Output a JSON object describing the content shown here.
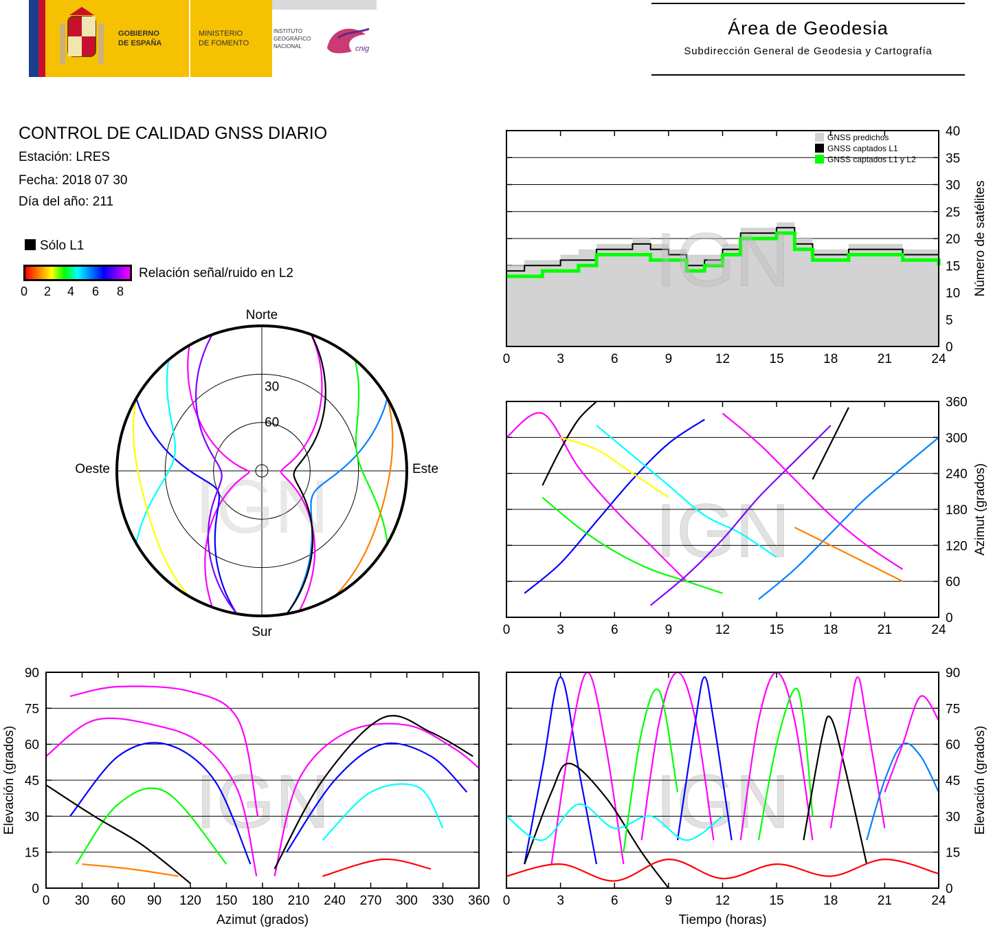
{
  "header": {
    "logo_lines": [
      "GOBIERNO",
      "DE ESPAÑA",
      "MINISTERIO",
      "DE FOMENTO",
      "INSTITUTO",
      "GEOGRÁFICO",
      "NACIONAL",
      "cnig"
    ],
    "area_title": "Área de Geodesia",
    "area_subtitle": "Subdirección General de Geodesia y Cartografía"
  },
  "report": {
    "title": "CONTROL DE CALIDAD GNSS DIARIO",
    "station": "Estación: LRES",
    "date": "Fecha: 2018 07 30",
    "doy": "Día del año: 211",
    "legend_l1": "Sólo L1",
    "snr_label": "Relación señal/ruido en L2",
    "snr_ticks": [
      "0",
      "2",
      "4",
      "6",
      "8"
    ],
    "snr_colors": [
      "#ff0000",
      "#ff7f00",
      "#ffff00",
      "#00ff00",
      "#00ffff",
      "#0080ff",
      "#0000ff",
      "#8000ff",
      "#ff00ff"
    ]
  },
  "watermark": "IGN",
  "chart_data": [
    {
      "type": "area",
      "id": "sat_count",
      "title": "",
      "xlabel": "",
      "ylabel": "Número de satélites",
      "xlim": [
        0,
        24
      ],
      "ylim": [
        0,
        40
      ],
      "xticks": [
        "0",
        "3",
        "6",
        "9",
        "12",
        "15",
        "18",
        "21",
        "24"
      ],
      "yticks": [
        "0",
        "5",
        "10",
        "15",
        "20",
        "25",
        "30",
        "35",
        "40"
      ],
      "legend_position": "top-right",
      "series": [
        {
          "name": "GNSS predichos",
          "color": "#d3d3d3",
          "x": [
            0,
            1,
            2,
            3,
            4,
            5,
            6,
            7,
            8,
            9,
            10,
            11,
            12,
            13,
            14,
            15,
            16,
            17,
            18,
            19,
            20,
            21,
            22,
            23,
            24
          ],
          "values": [
            15,
            16,
            16,
            17,
            18,
            19,
            19,
            20,
            19,
            18,
            17,
            17,
            19,
            22,
            22,
            23,
            20,
            18,
            18,
            19,
            19,
            19,
            18,
            18,
            17
          ]
        },
        {
          "name": "GNSS captados L1",
          "color": "#000000",
          "x": [
            0,
            1,
            2,
            3,
            4,
            5,
            6,
            7,
            8,
            9,
            10,
            11,
            12,
            13,
            14,
            15,
            16,
            17,
            18,
            19,
            20,
            21,
            22,
            23,
            24
          ],
          "values": [
            14,
            15,
            15,
            16,
            16,
            18,
            18,
            19,
            18,
            17,
            15,
            16,
            18,
            21,
            21,
            22,
            19,
            17,
            17,
            18,
            18,
            18,
            17,
            17,
            16
          ]
        },
        {
          "name": "GNSS captados L1 y L2",
          "color": "#00ff00",
          "x": [
            0,
            1,
            2,
            3,
            4,
            5,
            6,
            7,
            8,
            9,
            10,
            11,
            12,
            13,
            14,
            15,
            16,
            17,
            18,
            19,
            20,
            21,
            22,
            23,
            24
          ],
          "values": [
            13,
            13,
            14,
            14,
            15,
            17,
            17,
            17,
            16,
            16,
            14,
            15,
            17,
            20,
            20,
            21,
            18,
            16,
            16,
            17,
            17,
            17,
            16,
            16,
            15
          ]
        }
      ]
    },
    {
      "type": "scatter",
      "id": "skyplot",
      "title": "",
      "labels": {
        "north": "Norte",
        "south": "Sur",
        "east": "Este",
        "west": "Oeste"
      },
      "ring_labels": [
        "30",
        "60"
      ],
      "rings_elevation": [
        0,
        30,
        60
      ],
      "series": [
        {
          "name": "",
          "color": "#ff00ff",
          "az_from": 330,
          "az_to": 200,
          "max_el": 82
        },
        {
          "name": "",
          "color": "#ff00ff",
          "az_from": 20,
          "az_to": 165,
          "max_el": 78
        },
        {
          "name": "",
          "color": "#0000ff",
          "az_from": 300,
          "az_to": 190,
          "max_el": 60
        },
        {
          "name": "",
          "color": "#0080ff",
          "az_from": 60,
          "az_to": 170,
          "max_el": 55
        },
        {
          "name": "",
          "color": "#00ffff",
          "az_from": 320,
          "az_to": 240,
          "max_el": 35
        },
        {
          "name": "",
          "color": "#00ff00",
          "az_from": 40,
          "az_to": 120,
          "max_el": 30
        },
        {
          "name": "",
          "color": "#ffff00",
          "az_from": 300,
          "az_to": 210,
          "max_el": 15
        },
        {
          "name": "",
          "color": "#ff7f00",
          "az_from": 60,
          "az_to": 150,
          "max_el": 12
        },
        {
          "name": "",
          "color": "#000000",
          "az_from": 20,
          "az_to": 170,
          "max_el": 70
        },
        {
          "name": "",
          "color": "#8000ff",
          "az_from": 340,
          "az_to": 190,
          "max_el": 65
        }
      ]
    },
    {
      "type": "line",
      "id": "azimuth_time",
      "title": "",
      "xlabel": "",
      "ylabel": "Azimut (grados)",
      "xlim": [
        0,
        24
      ],
      "ylim": [
        0,
        360
      ],
      "xticks": [
        "0",
        "3",
        "6",
        "9",
        "12",
        "15",
        "18",
        "21",
        "24"
      ],
      "yticks": [
        "0",
        "60",
        "120",
        "180",
        "240",
        "300",
        "360"
      ],
      "series": [
        {
          "name": "",
          "color": "#ff00ff",
          "x": [
            0,
            2,
            4,
            6,
            8,
            10
          ],
          "values": [
            300,
            340,
            250,
            180,
            120,
            60
          ]
        },
        {
          "name": "",
          "color": "#0000ff",
          "x": [
            1,
            3,
            5,
            7,
            9,
            11
          ],
          "values": [
            40,
            90,
            160,
            230,
            290,
            330
          ]
        },
        {
          "name": "",
          "color": "#00ff00",
          "x": [
            2,
            4,
            6,
            8,
            10,
            12
          ],
          "values": [
            200,
            150,
            110,
            80,
            60,
            40
          ]
        },
        {
          "name": "",
          "color": "#00ffff",
          "x": [
            5,
            7,
            9,
            11,
            13,
            15
          ],
          "values": [
            320,
            270,
            220,
            170,
            140,
            100
          ]
        },
        {
          "name": "",
          "color": "#8000ff",
          "x": [
            8,
            10,
            12,
            14,
            16,
            18
          ],
          "values": [
            20,
            70,
            130,
            200,
            260,
            320
          ]
        },
        {
          "name": "",
          "color": "#ff00ff",
          "x": [
            12,
            14,
            16,
            18,
            20,
            22
          ],
          "values": [
            340,
            290,
            230,
            170,
            120,
            80
          ]
        },
        {
          "name": "",
          "color": "#0080ff",
          "x": [
            14,
            16,
            18,
            20,
            22,
            24
          ],
          "values": [
            30,
            80,
            140,
            200,
            250,
            300
          ]
        },
        {
          "name": "",
          "color": "#000000",
          "x": [
            2,
            3,
            4,
            5
          ],
          "values": [
            220,
            280,
            330,
            360
          ]
        },
        {
          "name": "",
          "color": "#000000",
          "x": [
            17,
            18,
            19
          ],
          "values": [
            230,
            290,
            350
          ]
        },
        {
          "name": "",
          "color": "#ffff00",
          "x": [
            3,
            5,
            7,
            9
          ],
          "values": [
            300,
            280,
            240,
            200
          ]
        },
        {
          "name": "",
          "color": "#ff7f00",
          "x": [
            16,
            18,
            20,
            22
          ],
          "values": [
            150,
            120,
            90,
            60
          ]
        }
      ]
    },
    {
      "type": "line",
      "id": "elevation_azimuth",
      "title": "",
      "xlabel": "Azimut (grados)",
      "ylabel": "Elevación (grados)",
      "xlim": [
        0,
        360
      ],
      "ylim": [
        0,
        90
      ],
      "xticks": [
        "0",
        "30",
        "60",
        "90",
        "120",
        "150",
        "180",
        "210",
        "240",
        "270",
        "300",
        "330",
        "360"
      ],
      "yticks": [
        "0",
        "15",
        "30",
        "45",
        "60",
        "75",
        "90"
      ],
      "series": [
        {
          "name": "",
          "color": "#ff00ff",
          "x": [
            0,
            40,
            90,
            130,
            160,
            175
          ],
          "values": [
            55,
            70,
            68,
            60,
            40,
            5
          ]
        },
        {
          "name": "",
          "color": "#ff00ff",
          "x": [
            190,
            210,
            250,
            300,
            340,
            360
          ],
          "values": [
            5,
            45,
            65,
            68,
            58,
            50
          ]
        },
        {
          "name": "",
          "color": "#0000ff",
          "x": [
            20,
            60,
            100,
            140,
            170
          ],
          "values": [
            30,
            55,
            60,
            45,
            10
          ]
        },
        {
          "name": "",
          "color": "#0000ff",
          "x": [
            200,
            240,
            280,
            320,
            350
          ],
          "values": [
            15,
            45,
            60,
            55,
            40
          ]
        },
        {
          "name": "",
          "color": "#00ff00",
          "x": [
            25,
            60,
            100,
            150
          ],
          "values": [
            10,
            35,
            40,
            10
          ]
        },
        {
          "name": "",
          "color": "#00ffff",
          "x": [
            230,
            270,
            310,
            330
          ],
          "values": [
            20,
            40,
            42,
            25
          ]
        },
        {
          "name": "",
          "color": "#000000",
          "x": [
            0,
            40,
            80,
            120
          ],
          "values": [
            43,
            30,
            18,
            2
          ]
        },
        {
          "name": "",
          "color": "#000000",
          "x": [
            190,
            230,
            280,
            320,
            355
          ],
          "values": [
            8,
            45,
            71,
            65,
            55
          ]
        },
        {
          "name": "",
          "color": "#ff00ff",
          "x": [
            20,
            60,
            120,
            160,
            176
          ],
          "values": [
            80,
            84,
            82,
            70,
            30
          ]
        },
        {
          "name": "",
          "color": "#ff7f00",
          "x": [
            30,
            70,
            110
          ],
          "values": [
            10,
            8,
            5
          ]
        },
        {
          "name": "",
          "color": "#ff0000",
          "x": [
            230,
            280,
            320
          ],
          "values": [
            5,
            12,
            8
          ]
        }
      ]
    },
    {
      "type": "line",
      "id": "elevation_time",
      "title": "",
      "xlabel": "Tiempo (horas)",
      "ylabel": "Elevación (grados)",
      "xlim": [
        0,
        24
      ],
      "ylim": [
        0,
        90
      ],
      "xticks": [
        "0",
        "3",
        "6",
        "9",
        "12",
        "15",
        "18",
        "21",
        "24"
      ],
      "yticks": [
        "0",
        "15",
        "30",
        "45",
        "60",
        "75",
        "90"
      ],
      "series": [
        {
          "name": "",
          "color": "#0000ff",
          "x": [
            1,
            2,
            3,
            4,
            5
          ],
          "values": [
            10,
            50,
            88,
            50,
            10
          ]
        },
        {
          "name": "",
          "color": "#ff00ff",
          "x": [
            2.5,
            3.5,
            4.5,
            5.5,
            6.5
          ],
          "values": [
            10,
            60,
            90,
            60,
            10
          ]
        },
        {
          "name": "",
          "color": "#000000",
          "x": [
            1,
            2.5,
            3.5,
            5.5,
            7.5,
            9
          ],
          "values": [
            10,
            40,
            52,
            38,
            15,
            0
          ]
        },
        {
          "name": "",
          "color": "#ff00ff",
          "x": [
            7.5,
            8.5,
            9.5,
            10.5,
            11.5
          ],
          "values": [
            20,
            70,
            90,
            70,
            20
          ]
        },
        {
          "name": "",
          "color": "#0000ff",
          "x": [
            9.5,
            10.5,
            11,
            11.5,
            12.5
          ],
          "values": [
            20,
            70,
            88,
            70,
            20
          ]
        },
        {
          "name": "",
          "color": "#00ff00",
          "x": [
            6.5,
            7.5,
            8.5,
            9.5
          ],
          "values": [
            15,
            65,
            82,
            40
          ]
        },
        {
          "name": "",
          "color": "#ff00ff",
          "x": [
            13,
            14,
            15,
            16,
            17
          ],
          "values": [
            20,
            70,
            90,
            70,
            20
          ]
        },
        {
          "name": "",
          "color": "#00ff00",
          "x": [
            14,
            15,
            16,
            16.5,
            17
          ],
          "values": [
            20,
            60,
            83,
            70,
            30
          ]
        },
        {
          "name": "",
          "color": "#000000",
          "x": [
            16.5,
            17.5,
            18,
            18.8,
            20
          ],
          "values": [
            20,
            62,
            71,
            50,
            10
          ]
        },
        {
          "name": "",
          "color": "#ff00ff",
          "x": [
            18,
            19,
            19.5,
            20,
            21
          ],
          "values": [
            25,
            70,
            88,
            70,
            25
          ]
        },
        {
          "name": "",
          "color": "#0080ff",
          "x": [
            20,
            21,
            22,
            23,
            24
          ],
          "values": [
            20,
            45,
            60,
            55,
            40
          ]
        },
        {
          "name": "",
          "color": "#ff00ff",
          "x": [
            21,
            22,
            23,
            24
          ],
          "values": [
            40,
            60,
            80,
            70
          ]
        },
        {
          "name": "",
          "color": "#00ffff",
          "x": [
            0,
            2,
            4,
            6,
            8,
            10,
            12
          ],
          "values": [
            30,
            20,
            35,
            25,
            30,
            20,
            30
          ]
        },
        {
          "name": "",
          "color": "#ff0000",
          "x": [
            0,
            3,
            6,
            9,
            12,
            15,
            18,
            21,
            24
          ],
          "values": [
            5,
            10,
            3,
            12,
            4,
            10,
            5,
            12,
            6
          ]
        }
      ]
    }
  ]
}
